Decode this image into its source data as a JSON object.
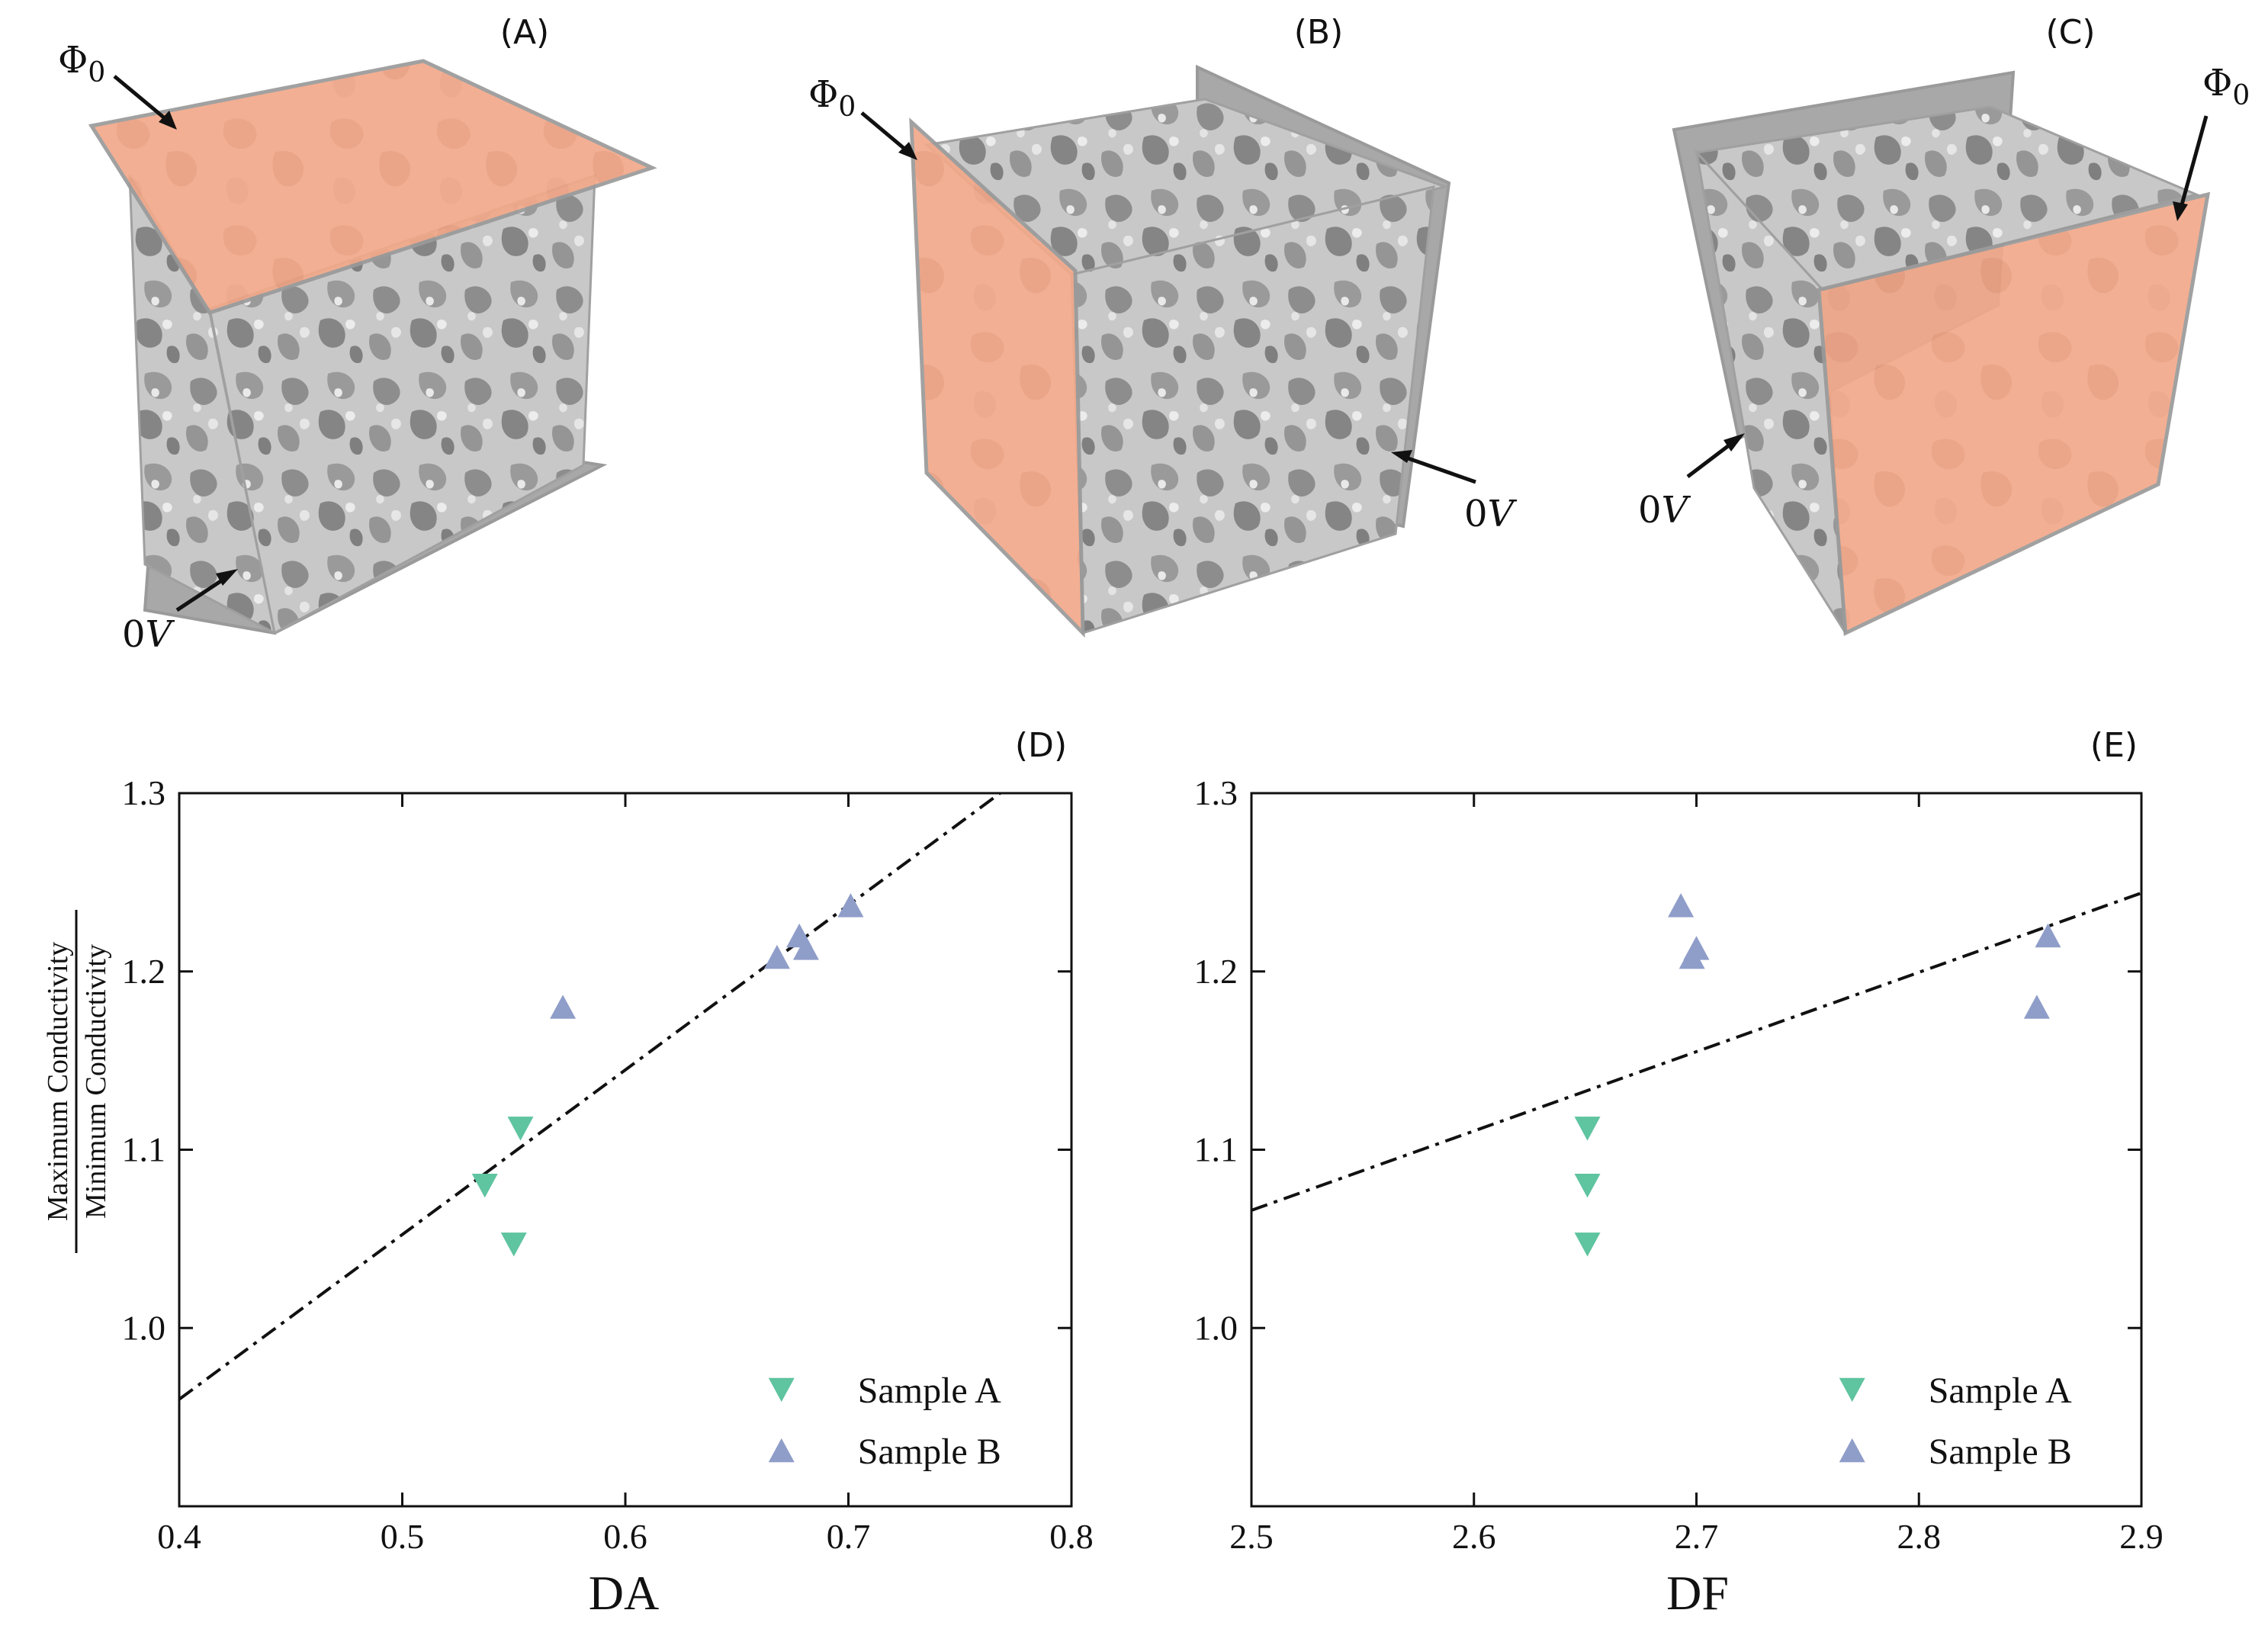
{
  "figure": {
    "panels_3d": [
      {
        "label": "(A)",
        "phi_label": "Φ0",
        "phi_base": "Φ",
        "phi_sub": "0",
        "ground_label": "0V",
        "ground_num": "0",
        "ground_unit": "V"
      },
      {
        "label": "(B)",
        "phi_label": "Φ0",
        "phi_base": "Φ",
        "phi_sub": "0",
        "ground_label": "0V",
        "ground_num": "0",
        "ground_unit": "V"
      },
      {
        "label": "(C)",
        "phi_label": "Φ0",
        "phi_base": "Φ",
        "phi_sub": "0",
        "ground_label": "0V",
        "ground_num": "0",
        "ground_unit": "V"
      }
    ],
    "colors": {
      "electrode_orange": "#f2a98a",
      "electrode_gray": "#a8a8a8",
      "pore_gray": "#c9c9c9",
      "sample_a": "#5fc4a0",
      "sample_b": "#8f9dc9"
    }
  },
  "chart_data": [
    {
      "type": "scatter",
      "panel_label": "(D)",
      "xlabel": "DA",
      "ylabel_numerator": "Maximum Conductivity",
      "ylabel_denominator": "Minimum Conductivity",
      "xlim": [
        0.4,
        0.8
      ],
      "ylim": [
        0.9,
        1.3
      ],
      "xticks": [
        0.4,
        0.5,
        0.6,
        0.7,
        0.8
      ],
      "xtick_labels": [
        "0.4",
        "0.5",
        "0.6",
        "0.7",
        "0.8"
      ],
      "yticks": [
        1.0,
        1.1,
        1.2,
        1.3
      ],
      "ytick_labels": [
        "1.0",
        "1.1",
        "1.2",
        "1.3"
      ],
      "series": [
        {
          "name": "Sample A",
          "marker": "triangle-down",
          "points": [
            [
              0.537,
              1.08
            ],
            [
              0.55,
              1.047
            ],
            [
              0.553,
              1.112
            ]
          ]
        },
        {
          "name": "Sample B",
          "marker": "triangle-up",
          "points": [
            [
              0.572,
              1.18
            ],
            [
              0.668,
              1.208
            ],
            [
              0.678,
              1.22
            ],
            [
              0.681,
              1.213
            ],
            [
              0.701,
              1.237
            ]
          ]
        }
      ],
      "fit_line": {
        "style": "dash-dot",
        "x": [
          0.4,
          0.768
        ],
        "y": [
          0.96,
          1.3
        ]
      },
      "legend_position": "bottom-right"
    },
    {
      "type": "scatter",
      "panel_label": "(E)",
      "xlabel": "DF",
      "xlim": [
        2.5,
        2.9
      ],
      "ylim": [
        0.9,
        1.3
      ],
      "xticks": [
        2.5,
        2.6,
        2.7,
        2.8,
        2.9
      ],
      "xtick_labels": [
        "2.5",
        "2.6",
        "2.7",
        "2.8",
        "2.9"
      ],
      "yticks": [
        1.0,
        1.1,
        1.2,
        1.3
      ],
      "ytick_labels": [
        "1.0",
        "1.1",
        "1.2",
        "1.3"
      ],
      "series": [
        {
          "name": "Sample A",
          "marker": "triangle-down",
          "points": [
            [
              2.651,
              1.112
            ],
            [
              2.651,
              1.08
            ],
            [
              2.651,
              1.047
            ]
          ]
        },
        {
          "name": "Sample B",
          "marker": "triangle-up",
          "points": [
            [
              2.693,
              1.237
            ],
            [
              2.698,
              1.208
            ],
            [
              2.7,
              1.213
            ],
            [
              2.853,
              1.18
            ],
            [
              2.858,
              1.22
            ]
          ]
        }
      ],
      "fit_line": {
        "style": "dash-dot",
        "x": [
          2.5,
          2.9
        ],
        "y": [
          1.066,
          1.244
        ]
      },
      "legend_position": "bottom-right"
    }
  ]
}
